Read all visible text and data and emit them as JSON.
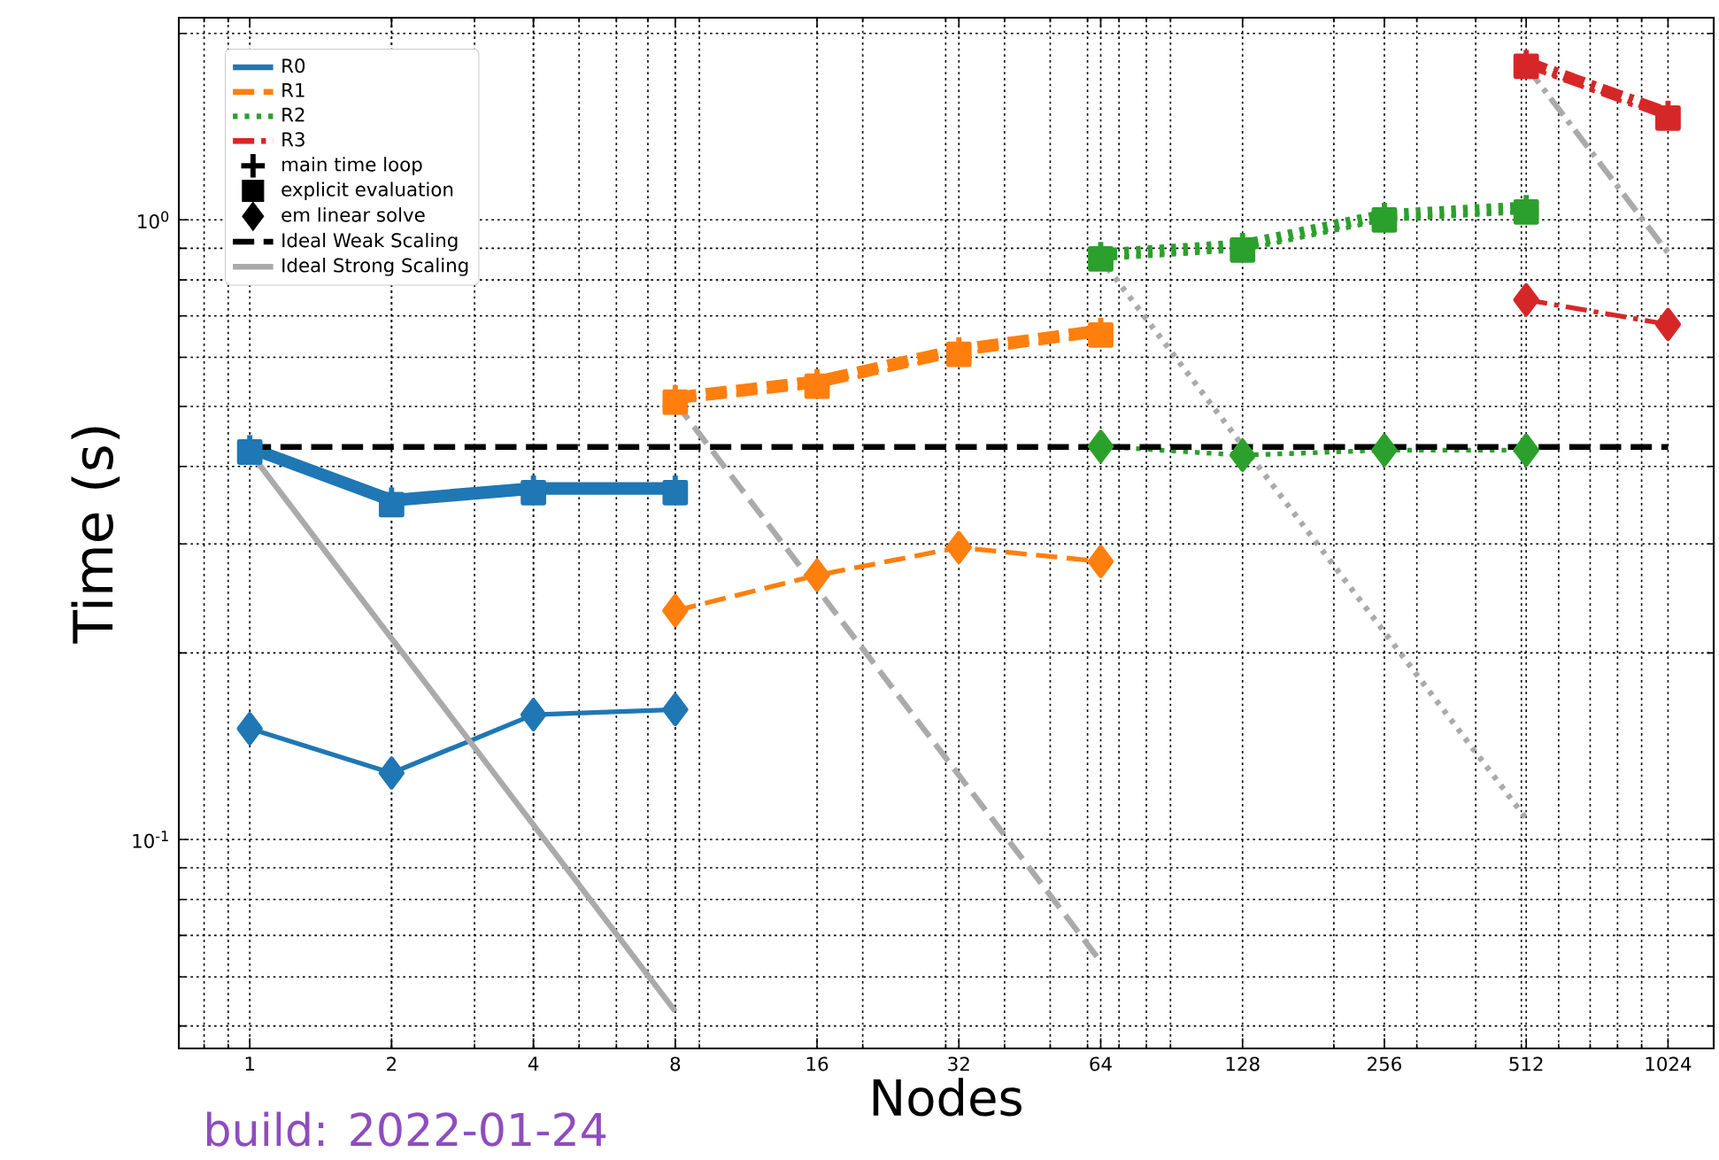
{
  "chart_data": {
    "type": "line",
    "xlabel": "Nodes",
    "ylabel": "Time (s)",
    "annotations": [
      "build: 2022-01-24"
    ],
    "log": "xy",
    "grid": true,
    "legend": "top left",
    "xlim": [
      0.707,
      1280
    ],
    "ylim": [
      0.046,
      2.12
    ],
    "xticks": [
      1,
      2,
      4,
      8,
      16,
      32,
      64,
      128,
      256,
      512,
      1024
    ],
    "yticks": [
      {
        "value": 0.1,
        "label": "10$^{-1}$"
      },
      {
        "value": 1,
        "label": "10$^{0}$"
      }
    ],
    "series": [
      {
        "name": "R0",
        "color": "#1f77b4",
        "line_style": "solid"
      },
      {
        "name": "R1",
        "color": "#ff7f0e",
        "line_style": "dashed"
      },
      {
        "name": "R2",
        "color": "#2ca02c",
        "line_style": "dotted"
      },
      {
        "name": "R3",
        "color": "#d62728",
        "line_style": "dashdot"
      },
      {
        "name": "main time loop",
        "type": "scatter",
        "color": "#000000",
        "marker": "cross"
      },
      {
        "name": "explicit evaluation",
        "type": "scatter",
        "color": "#000000",
        "marker": "square"
      },
      {
        "name": "em linear solve",
        "type": "scatter",
        "color": "#000000",
        "marker": "diamond"
      },
      {
        "color": "#1f77b4",
        "line_style": "solid",
        "marker": "cross",
        "x": [
          1,
          2,
          4,
          8
        ],
        "values": [
          0.43,
          0.354,
          0.37,
          0.37
        ]
      },
      {
        "color": "#1f77b4",
        "line_style": "solid",
        "marker": "square",
        "x": [
          1,
          2,
          4,
          8
        ],
        "values": [
          0.422,
          0.347,
          0.363,
          0.363
        ]
      },
      {
        "color": "#1f77b4",
        "line_style": "solid",
        "marker": "diamond",
        "x": [
          1,
          2,
          4,
          8
        ],
        "values": [
          0.151,
          0.128,
          0.159,
          0.162
        ]
      },
      {
        "color": "#ff7f0e",
        "line_style": "dashed",
        "marker": "cross",
        "x": [
          8,
          16,
          32,
          64
        ],
        "values": [
          0.518,
          0.55,
          0.619,
          0.665
        ]
      },
      {
        "color": "#ff7f0e",
        "line_style": "dashed",
        "marker": "square",
        "x": [
          8,
          16,
          32,
          64
        ],
        "values": [
          0.508,
          0.539,
          0.607,
          0.652
        ]
      },
      {
        "color": "#ff7f0e",
        "line_style": "dashed",
        "marker": "diamond",
        "x": [
          8,
          16,
          32,
          64
        ],
        "values": [
          0.234,
          0.267,
          0.296,
          0.281
        ]
      },
      {
        "color": "#2ca02c",
        "line_style": "dotted",
        "marker": "cross",
        "x": [
          64,
          128,
          256,
          512
        ],
        "values": [
          0.882,
          0.912,
          1.02,
          1.05
        ]
      },
      {
        "color": "#2ca02c",
        "line_style": "dotted",
        "marker": "square",
        "x": [
          64,
          128,
          256,
          512
        ],
        "values": [
          0.865,
          0.894,
          1.0,
          1.03
        ]
      },
      {
        "color": "#2ca02c",
        "line_style": "dotted",
        "marker": "diamond",
        "x": [
          64,
          128,
          256,
          512
        ],
        "values": [
          0.431,
          0.417,
          0.425,
          0.425
        ]
      },
      {
        "color": "#d62728",
        "line_style": "dashdot",
        "marker": "cross",
        "x": [
          512,
          1024
        ],
        "values": [
          1.8,
          1.49
        ]
      },
      {
        "color": "#d62728",
        "line_style": "dashdot",
        "marker": "square",
        "x": [
          512,
          1024
        ],
        "values": [
          1.77,
          1.46
        ]
      },
      {
        "color": "#d62728",
        "line_style": "dashdot",
        "marker": "diamond",
        "x": [
          512,
          1024
        ],
        "values": [
          0.743,
          0.678
        ]
      },
      {
        "name": "Ideal Weak Scaling",
        "color": "#000000",
        "line_style": "dashed",
        "x": [
          1,
          1024
        ],
        "values": [
          0.43,
          0.43
        ]
      },
      {
        "name": "Ideal Strong Scaling",
        "color": "#aaaaaa",
        "line_style": "solid",
        "x": [
          1,
          8
        ],
        "values": [
          0.422,
          0.0528
        ]
      },
      {
        "color": "#aaaaaa",
        "line_style": "dashed",
        "x": [
          8,
          64
        ],
        "values": [
          0.508,
          0.0635
        ]
      },
      {
        "color": "#aaaaaa",
        "line_style": "dotted",
        "x": [
          64,
          512
        ],
        "values": [
          0.865,
          0.108
        ]
      },
      {
        "color": "#aaaaaa",
        "line_style": "dashdot",
        "x": [
          512,
          1024
        ],
        "values": [
          1.77,
          0.885
        ]
      }
    ]
  }
}
